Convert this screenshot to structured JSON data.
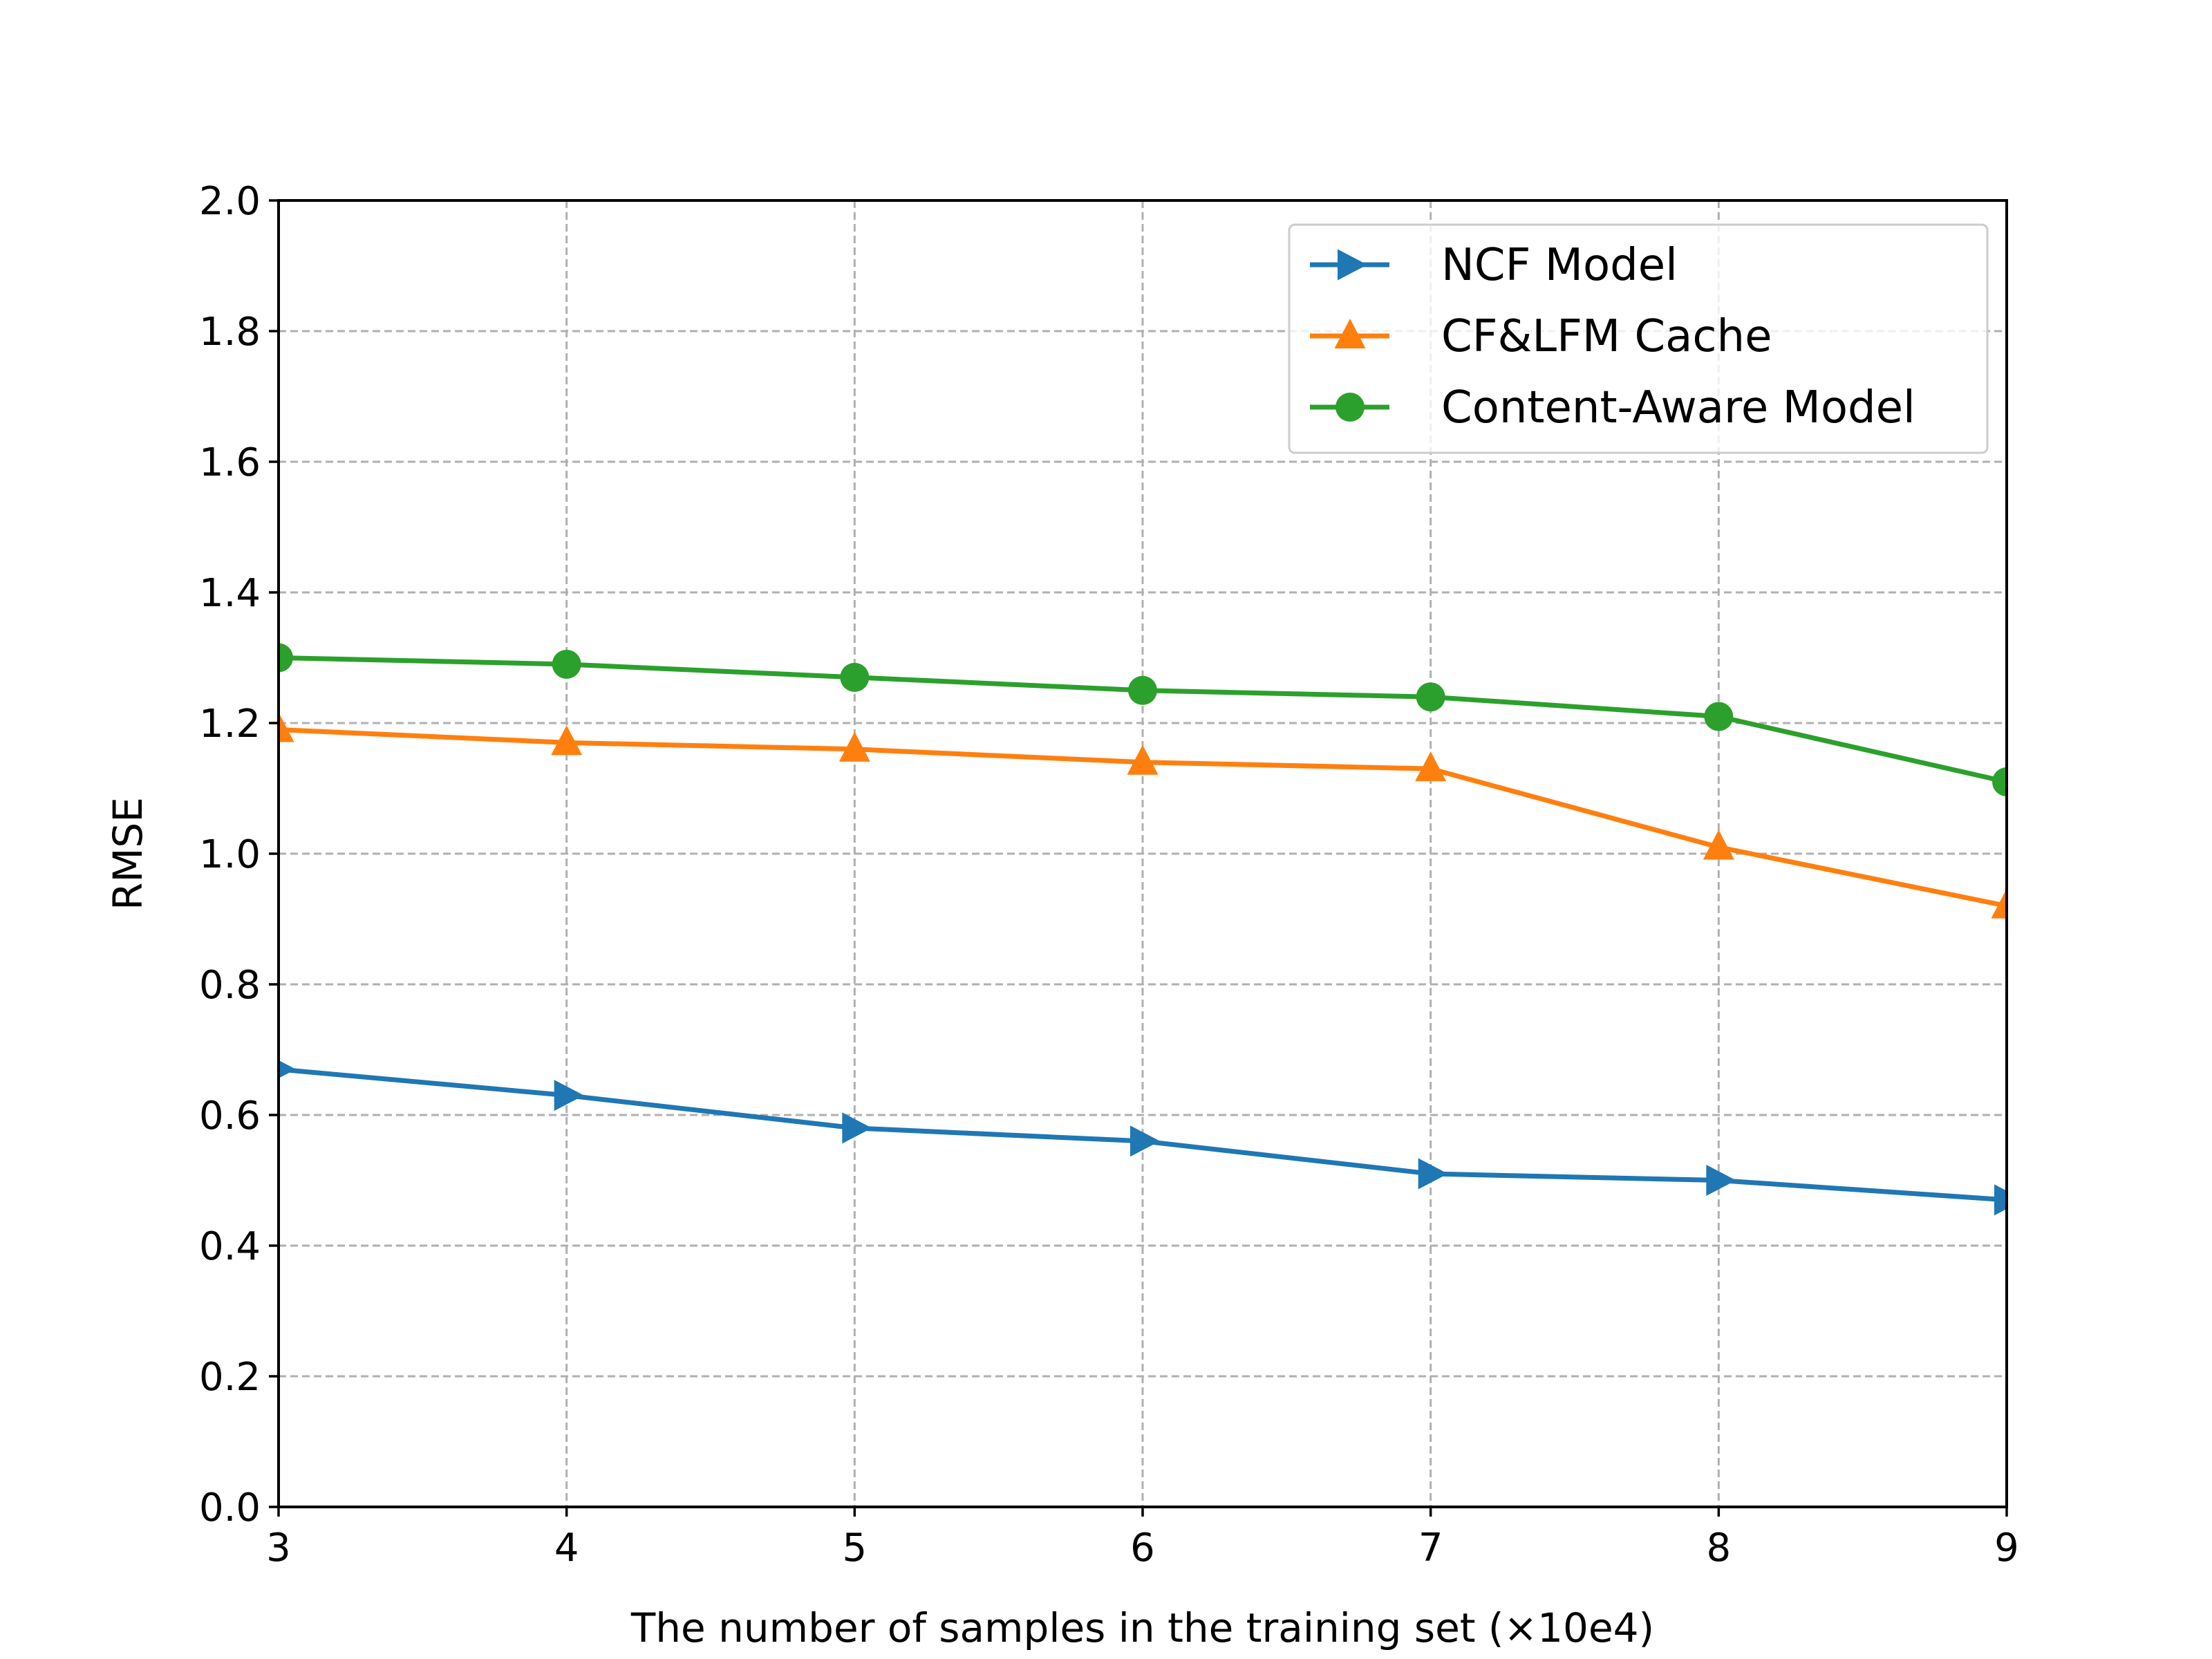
{
  "chart_data": {
    "type": "line",
    "title": "",
    "xlabel": "The number of samples in the training set (×10e4)",
    "ylabel": "RMSE",
    "x": [
      3,
      4,
      5,
      6,
      7,
      8,
      9
    ],
    "xlim": [
      3,
      9
    ],
    "ylim": [
      0.0,
      2.0
    ],
    "xticks": [
      3,
      4,
      5,
      6,
      7,
      8,
      9
    ],
    "xtick_labels": [
      "3",
      "4",
      "5",
      "6",
      "7",
      "8",
      "9"
    ],
    "yticks": [
      0.0,
      0.2,
      0.4,
      0.6,
      0.8,
      1.0,
      1.2,
      1.4,
      1.6,
      1.8,
      2.0
    ],
    "ytick_labels": [
      "0.0",
      "0.2",
      "0.4",
      "0.6",
      "0.8",
      "1.0",
      "1.2",
      "1.4",
      "1.6",
      "1.8",
      "2.0"
    ],
    "grid": true,
    "legend_position": "top-right",
    "series": [
      {
        "name": "NCF Model",
        "marker": "triangle-right",
        "color": "#1f77b4",
        "values": [
          0.67,
          0.63,
          0.58,
          0.56,
          0.51,
          0.5,
          0.47
        ]
      },
      {
        "name": "CF&LFM Cache",
        "marker": "triangle-up",
        "color": "#ff7f0e",
        "values": [
          1.19,
          1.17,
          1.16,
          1.14,
          1.13,
          1.01,
          0.92
        ]
      },
      {
        "name": "Content-Aware Model",
        "marker": "circle",
        "color": "#2ca02c",
        "values": [
          1.3,
          1.29,
          1.27,
          1.25,
          1.24,
          1.21,
          1.11
        ]
      }
    ]
  }
}
